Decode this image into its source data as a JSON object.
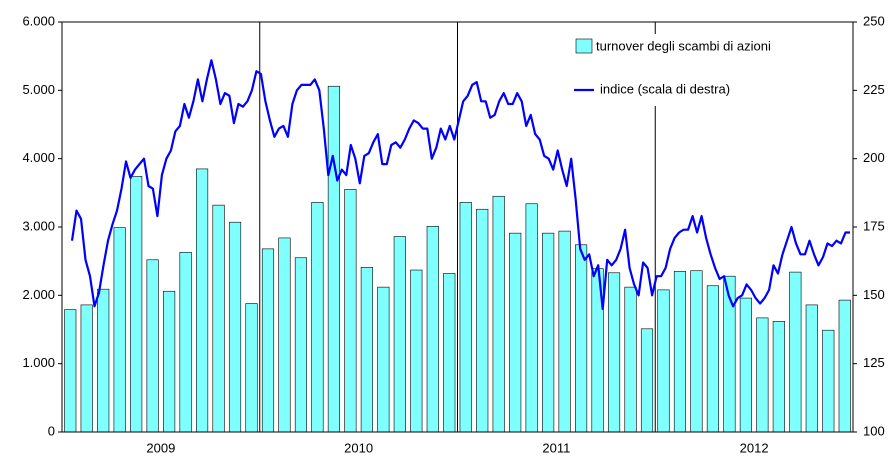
{
  "chart_data": {
    "type": "bar-line",
    "year_labels": [
      "2009",
      "2010",
      "2011",
      "2012"
    ],
    "ylim": [
      0,
      6000
    ],
    "yticks": [
      {
        "value": 0,
        "label": "0"
      },
      {
        "value": 1000,
        "label": "1.000"
      },
      {
        "value": 2000,
        "label": "2.000"
      },
      {
        "value": 3000,
        "label": "3.000"
      },
      {
        "value": 4000,
        "label": "4.000"
      },
      {
        "value": 5000,
        "label": "5.000"
      },
      {
        "value": 6000,
        "label": "6.000"
      }
    ],
    "y2lim": [
      100,
      250
    ],
    "y2ticks": [
      100,
      125,
      150,
      175,
      200,
      225,
      250
    ],
    "legend": "upper right",
    "series": [
      {
        "name": "turnover degli scambi di azioni",
        "color": "#80ffff",
        "values": [
          1790,
          1860,
          2090,
          2990,
          3740,
          2520,
          2060,
          2630,
          3850,
          3320,
          3070,
          1880,
          2680,
          2840,
          2550,
          3360,
          5060,
          3550,
          2410,
          2120,
          2860,
          2370,
          3010,
          2320,
          3360,
          3260,
          3450,
          2910,
          3340,
          2910,
          2940,
          2740,
          2390,
          2330,
          2120,
          1510,
          2080,
          2350,
          2360,
          2140,
          2280,
          1960,
          1670,
          1620,
          2340,
          1860,
          1490,
          1930
        ]
      },
      {
        "name": "indice (scala di destra)",
        "color": "#0000ff",
        "axis": "y2",
        "values": [
          170,
          181,
          178,
          163,
          157,
          146,
          151,
          161,
          170,
          176,
          181,
          189,
          199,
          193,
          196,
          198,
          200,
          190,
          189,
          179,
          194,
          200,
          203,
          210,
          212,
          220,
          215,
          221,
          229,
          221,
          229,
          236,
          229,
          220,
          224,
          223,
          213,
          220,
          219,
          221,
          225,
          232,
          231,
          221,
          214,
          208,
          211,
          212,
          208,
          220,
          225,
          227,
          227,
          227,
          229,
          225,
          211,
          194,
          201,
          192,
          196,
          194,
          205,
          200,
          191,
          201,
          202,
          206,
          209,
          198,
          198,
          205,
          206,
          204,
          207,
          211,
          214,
          213,
          211,
          211,
          200,
          204,
          211,
          207,
          212,
          207,
          214,
          221,
          223,
          227,
          228,
          221,
          221,
          215,
          216,
          221,
          224,
          220,
          220,
          224,
          221,
          212,
          216,
          209,
          207,
          201,
          200,
          196,
          203,
          196,
          190,
          200,
          185,
          167,
          163,
          165,
          157,
          161,
          145,
          163,
          161,
          163,
          167,
          174,
          160,
          154,
          150,
          162,
          160,
          150,
          157,
          157,
          160,
          167,
          171,
          173,
          174,
          174,
          179,
          173,
          179,
          171,
          165,
          160,
          156,
          157,
          150,
          146,
          149,
          150,
          154,
          152,
          149,
          147,
          149,
          152,
          161,
          158,
          165,
          170,
          175,
          169,
          165,
          165,
          170,
          165,
          161,
          164,
          169,
          168,
          170,
          169,
          173,
          173
        ]
      }
    ]
  }
}
